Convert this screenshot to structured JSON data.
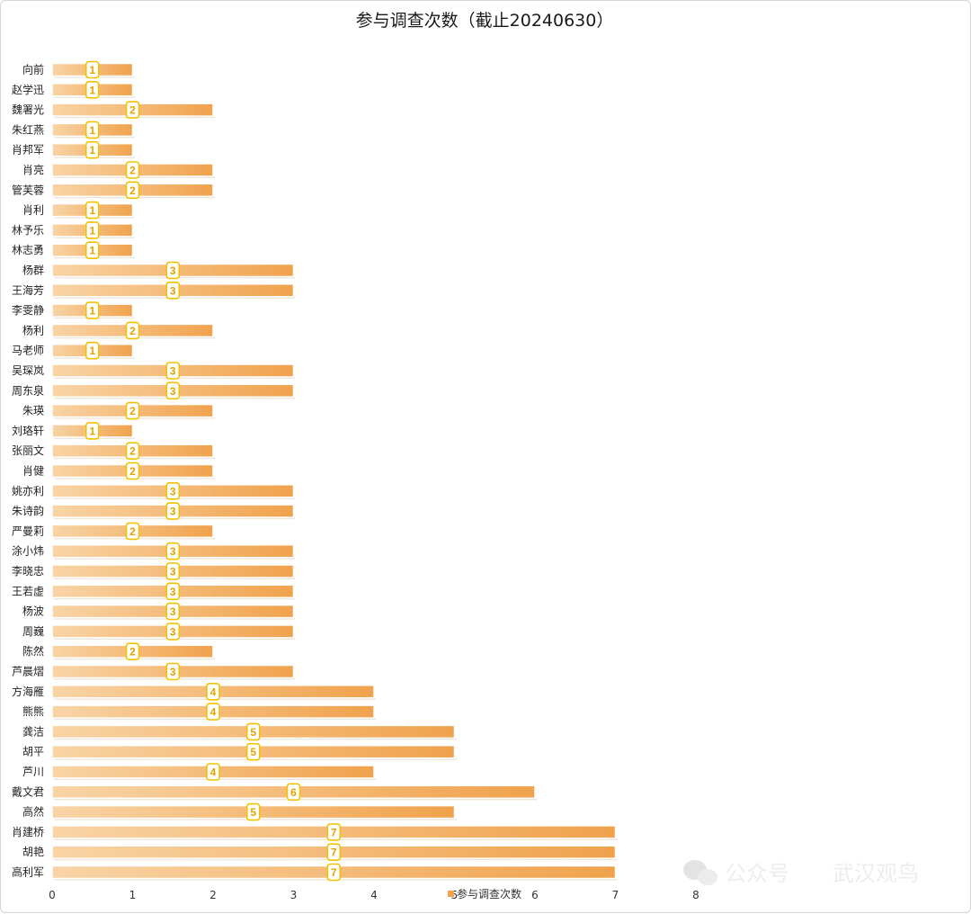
{
  "chart_data": {
    "type": "bar",
    "orientation": "horizontal",
    "title": "参与调查次数（截止20240630）",
    "categories": [
      "向前",
      "赵学迅",
      "魏署光",
      "朱红燕",
      "肖邦军",
      "肖亮",
      "管芙蓉",
      "肖利",
      "林予乐",
      "林志勇",
      "杨群",
      "王海芳",
      "李雯静",
      "杨利",
      "马老师",
      "吴琛岚",
      "周东泉",
      "朱瑛",
      "刘珞轩",
      "张丽文",
      "肖健",
      "姚亦利",
      "朱诗韵",
      "严曼莉",
      "涂小炜",
      "李晓忠",
      "王若虚",
      "杨波",
      "周巍",
      "陈然",
      "芦晨熠",
      "方海雁",
      "熊熊",
      "龚洁",
      "胡平",
      "芦川",
      "戴文君",
      "高然",
      "肖建桥",
      "胡艳",
      "高利军"
    ],
    "series": [
      {
        "name": "参与调查次数",
        "values": [
          1,
          1,
          2,
          1,
          1,
          2,
          2,
          1,
          1,
          1,
          3,
          3,
          1,
          2,
          1,
          3,
          3,
          2,
          1,
          2,
          2,
          3,
          3,
          2,
          3,
          3,
          3,
          3,
          3,
          2,
          3,
          4,
          4,
          5,
          5,
          4,
          6,
          5,
          7,
          7,
          7
        ]
      }
    ],
    "xlim": [
      0,
      8
    ],
    "xticks": [
      0,
      1,
      2,
      3,
      4,
      5,
      6,
      7,
      8
    ],
    "grid": false,
    "legend_position": "bottom",
    "colors": {
      "bar_start": "#f8d4a6",
      "bar_end": "#f0a24c",
      "label_border": "#f2c200",
      "label_text": "#e0a400"
    }
  },
  "watermark": {
    "icon": "wechat-icon",
    "text_left": "公众号",
    "text_right": "武汉观鸟"
  }
}
